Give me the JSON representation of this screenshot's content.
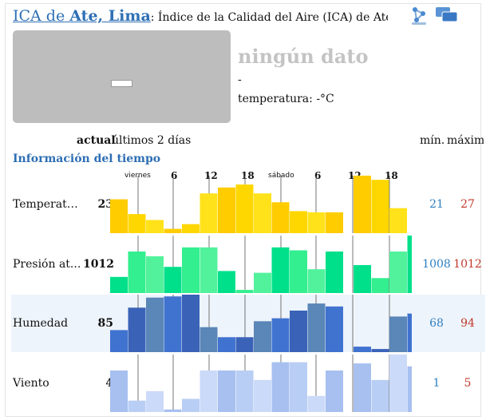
{
  "title": {
    "prefix": "ICA de",
    "city": "Ate, Lima",
    "rest": ": Índice de la Calidad del Aire (ICA) de Ate, L"
  },
  "icons": {
    "share": "share-icon",
    "chat": "chat-bubbles-icon"
  },
  "aqi": {
    "value": "–",
    "status": "ningún dato",
    "line1": "-",
    "line2": "temperatura: -°C"
  },
  "columns": {
    "current": "actual",
    "history": "últimos 2 días",
    "min": "mín.",
    "max": "máxim"
  },
  "section_title": "Información del tiempo",
  "time_ticks": [
    {
      "label": "viernes",
      "style": "s"
    },
    {
      "label": "6",
      "style": "b"
    },
    {
      "label": "12",
      "style": "b"
    },
    {
      "label": "18",
      "style": "b"
    },
    {
      "label": "sábado",
      "style": "s"
    },
    {
      "label": "6",
      "style": "b"
    },
    {
      "label": "12",
      "style": "b"
    },
    {
      "label": "18",
      "style": "b"
    }
  ],
  "rows": [
    {
      "label": "Temperatu...",
      "current": "23",
      "min": "21",
      "max": "27",
      "colors": [
        "#ffcc00",
        "#ffd700",
        "#ffe21a"
      ],
      "history": [
        0.6,
        0.35,
        0.25,
        0.1,
        0.18,
        0.7,
        0.8,
        0.85,
        0.7,
        0.55,
        0.4,
        0.38,
        0.38
      ],
      "recent": [
        1.0,
        0.93,
        0.45
      ]
    },
    {
      "label": "Presión at...",
      "current": "1012",
      "min": "1008",
      "max": "1012",
      "colors": [
        "#00e08a",
        "#33ef8f",
        "#52f29c"
      ],
      "history": [
        0.3,
        0.73,
        0.65,
        0.47,
        0.8,
        0.8,
        0.4,
        0.08,
        0.37,
        0.8,
        0.75,
        0.43,
        0.73
      ],
      "recent": [
        0.5,
        0.28,
        0.73,
        1.0
      ]
    },
    {
      "label": "Humedad",
      "current": "85",
      "min": "68",
      "max": "94",
      "colors": [
        "#4073d0",
        "#3a63b8",
        "#5a86b8"
      ],
      "history": [
        0.4,
        0.78,
        0.95,
        0.97,
        1.0,
        0.45,
        0.28,
        0.28,
        0.55,
        0.6,
        0.73,
        0.85,
        0.8
      ],
      "recent": [
        0.12,
        0.08,
        0.63,
        0.68
      ]
    },
    {
      "label": "Viento",
      "current": "4",
      "min": "1",
      "max": "5",
      "colors": [
        "#a7c0f0",
        "#b9cef5",
        "#cbdaf8"
      ],
      "history": [
        0.73,
        0.22,
        0.38,
        0.07,
        0.25,
        0.73,
        0.73,
        0.73,
        0.57,
        0.87,
        0.87,
        0.3,
        0.73
      ],
      "recent": [
        0.85,
        0.57,
        1.0,
        0.8
      ]
    }
  ]
}
